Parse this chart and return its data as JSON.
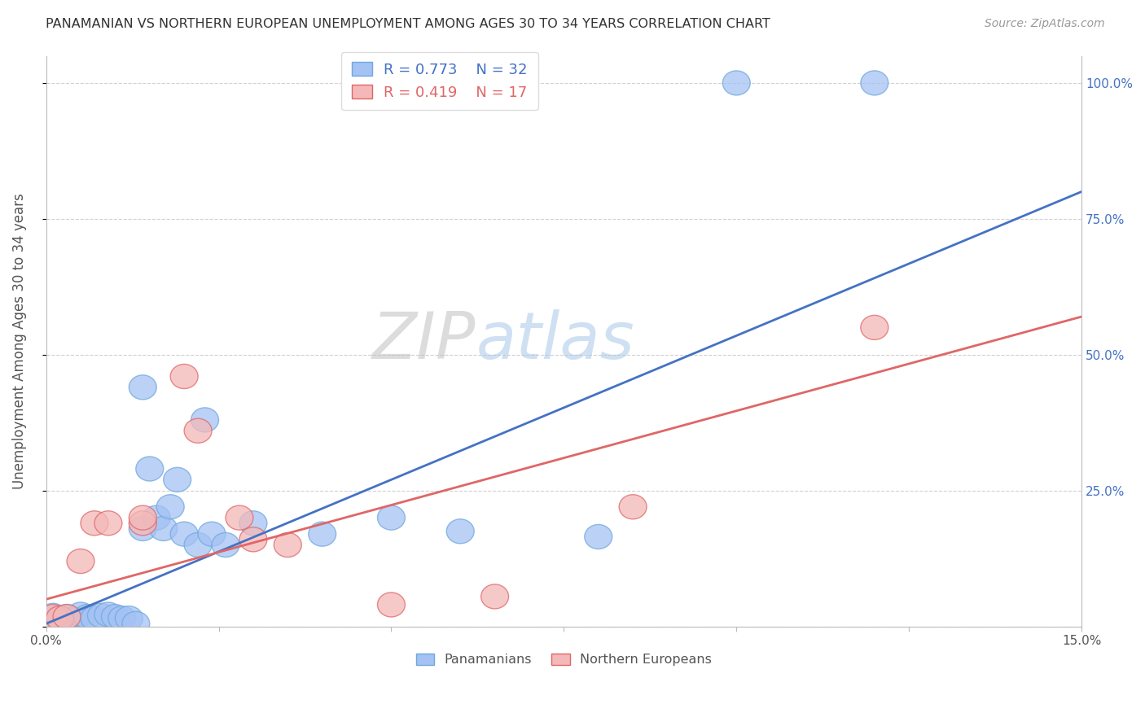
{
  "title": "PANAMANIAN VS NORTHERN EUROPEAN UNEMPLOYMENT AMONG AGES 30 TO 34 YEARS CORRELATION CHART",
  "source": "Source: ZipAtlas.com",
  "ylabel": "Unemployment Among Ages 30 to 34 years",
  "xlim": [
    0.0,
    0.15
  ],
  "ylim": [
    0.0,
    1.05
  ],
  "blue_r": "R = 0.773",
  "blue_n": "N = 32",
  "pink_r": "R = 0.419",
  "pink_n": "N = 17",
  "blue_fill": "#a4c2f4",
  "blue_edge": "#6fa8dc",
  "pink_fill": "#f4b8b8",
  "pink_edge": "#e06666",
  "blue_line_color": "#4472c4",
  "pink_line_color": "#e06666",
  "blue_scatter": [
    [
      0.001,
      0.02
    ],
    [
      0.002,
      0.015
    ],
    [
      0.003,
      0.018
    ],
    [
      0.004,
      0.012
    ],
    [
      0.005,
      0.022
    ],
    [
      0.006,
      0.018
    ],
    [
      0.007,
      0.015
    ],
    [
      0.008,
      0.02
    ],
    [
      0.009,
      0.022
    ],
    [
      0.01,
      0.018
    ],
    [
      0.011,
      0.015
    ],
    [
      0.012,
      0.015
    ],
    [
      0.013,
      0.005
    ],
    [
      0.014,
      0.18
    ],
    [
      0.015,
      0.29
    ],
    [
      0.016,
      0.2
    ],
    [
      0.017,
      0.18
    ],
    [
      0.018,
      0.22
    ],
    [
      0.019,
      0.27
    ],
    [
      0.02,
      0.17
    ],
    [
      0.022,
      0.15
    ],
    [
      0.024,
      0.17
    ],
    [
      0.026,
      0.15
    ],
    [
      0.03,
      0.19
    ],
    [
      0.04,
      0.17
    ],
    [
      0.05,
      0.2
    ],
    [
      0.06,
      0.175
    ],
    [
      0.08,
      0.165
    ],
    [
      0.1,
      1.0
    ],
    [
      0.12,
      1.0
    ],
    [
      0.023,
      0.38
    ],
    [
      0.014,
      0.44
    ]
  ],
  "pink_scatter": [
    [
      0.001,
      0.018
    ],
    [
      0.002,
      0.015
    ],
    [
      0.003,
      0.018
    ],
    [
      0.005,
      0.12
    ],
    [
      0.007,
      0.19
    ],
    [
      0.009,
      0.19
    ],
    [
      0.014,
      0.19
    ],
    [
      0.014,
      0.2
    ],
    [
      0.02,
      0.46
    ],
    [
      0.022,
      0.36
    ],
    [
      0.028,
      0.2
    ],
    [
      0.03,
      0.16
    ],
    [
      0.035,
      0.15
    ],
    [
      0.05,
      0.04
    ],
    [
      0.065,
      0.055
    ],
    [
      0.085,
      0.22
    ],
    [
      0.12,
      0.55
    ]
  ],
  "blue_trend_x": [
    0.0,
    0.15
  ],
  "blue_trend_y": [
    0.005,
    0.8
  ],
  "pink_trend_x": [
    0.0,
    0.15
  ],
  "pink_trend_y": [
    0.05,
    0.57
  ],
  "xtick_positions": [
    0.0,
    0.025,
    0.05,
    0.075,
    0.1,
    0.125,
    0.15
  ],
  "xtick_labels": [
    "0.0%",
    "",
    "",
    "",
    "",
    "",
    "15.0%"
  ],
  "ytick_positions": [
    0.0,
    0.25,
    0.5,
    0.75,
    1.0
  ],
  "ytick_labels_right": [
    "",
    "25.0%",
    "50.0%",
    "75.0%",
    "100.0%"
  ],
  "grid_color": "#cccccc",
  "bg_color": "#ffffff",
  "watermark_zip": "ZIP",
  "watermark_atlas": "atlas",
  "legend_labels": [
    "Panamanians",
    "Northern Europeans"
  ],
  "right_tick_color": "#4472c4",
  "legend_r_n_color_blue": "#4472c4",
  "legend_r_n_color_pink": "#e06666"
}
